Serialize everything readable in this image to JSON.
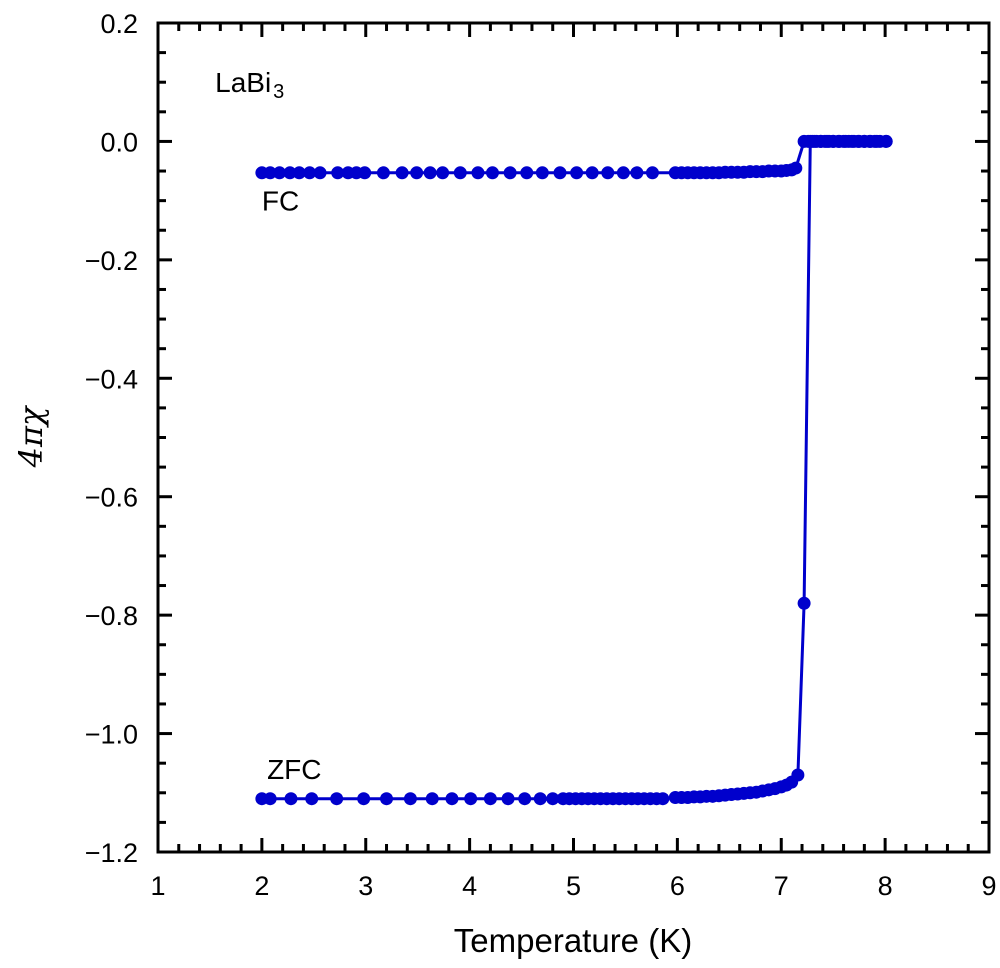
{
  "chart_data": {
    "type": "scatter",
    "title": "",
    "xlabel": "Temperature (K)",
    "ylabel": "4πχ",
    "xlim": [
      1,
      9
    ],
    "ylim": [
      -1.2,
      0.2
    ],
    "xticks": [
      1,
      2,
      3,
      4,
      5,
      6,
      7,
      8,
      9
    ],
    "yticks": [
      0.2,
      0.0,
      -0.2,
      -0.4,
      -0.6,
      -0.8,
      -1.0,
      -1.2
    ],
    "xtick_labels": [
      "1",
      "2",
      "3",
      "4",
      "5",
      "6",
      "7",
      "8",
      "9"
    ],
    "ytick_labels": [
      "0.2",
      "0.0",
      "−0.2",
      "−0.4",
      "−0.6",
      "−0.8",
      "−1.0",
      "−1.2"
    ],
    "grid": false,
    "marker_color": "#0000cc",
    "annotations": [
      {
        "text": "LaBi",
        "sub": "3",
        "x": 1.55,
        "y": 0.1
      },
      {
        "text": "FC",
        "x": 2.0,
        "y": -0.1
      },
      {
        "text": "ZFC",
        "x": 2.05,
        "y": -1.06
      }
    ],
    "series": [
      {
        "name": "FC",
        "x": [
          2.0,
          2.08,
          2.17,
          2.27,
          2.36,
          2.46,
          2.56,
          2.73,
          2.83,
          2.91,
          2.99,
          3.17,
          3.35,
          3.49,
          3.62,
          3.74,
          3.91,
          4.08,
          4.22,
          4.39,
          4.55,
          4.7,
          4.87,
          5.03,
          5.18,
          5.33,
          5.48,
          5.61,
          5.76,
          5.98,
          6.04,
          6.1,
          6.16,
          6.22,
          6.28,
          6.34,
          6.4,
          6.46,
          6.52,
          6.58,
          6.64,
          6.7,
          6.76,
          6.82,
          6.88,
          6.94,
          7.0,
          7.05,
          7.1,
          7.14,
          7.22,
          7.26,
          7.3,
          7.34,
          7.38,
          7.42,
          7.46,
          7.5,
          7.55,
          7.6,
          7.65,
          7.7,
          7.75,
          7.8,
          7.85,
          7.9,
          7.95,
          8.01
        ],
        "y": [
          -0.053,
          -0.053,
          -0.053,
          -0.053,
          -0.053,
          -0.053,
          -0.053,
          -0.053,
          -0.053,
          -0.053,
          -0.053,
          -0.053,
          -0.053,
          -0.053,
          -0.053,
          -0.053,
          -0.053,
          -0.053,
          -0.053,
          -0.053,
          -0.053,
          -0.053,
          -0.053,
          -0.053,
          -0.053,
          -0.053,
          -0.053,
          -0.053,
          -0.053,
          -0.053,
          -0.053,
          -0.053,
          -0.053,
          -0.053,
          -0.053,
          -0.053,
          -0.053,
          -0.052,
          -0.052,
          -0.052,
          -0.052,
          -0.051,
          -0.051,
          -0.051,
          -0.05,
          -0.05,
          -0.05,
          -0.049,
          -0.048,
          -0.045,
          0.0,
          0.0,
          0.0,
          0.0,
          0.0,
          0.0,
          0.0,
          0.0,
          0.0,
          0.0,
          0.0,
          0.0,
          0.0,
          0.0,
          0.0,
          0.0,
          0.0,
          0.0
        ]
      },
      {
        "name": "ZFC",
        "x": [
          2.0,
          2.08,
          2.28,
          2.48,
          2.72,
          2.98,
          3.2,
          3.43,
          3.64,
          3.83,
          4.01,
          4.2,
          4.37,
          4.53,
          4.68,
          4.8,
          4.9,
          4.96,
          5.02,
          5.08,
          5.14,
          5.2,
          5.26,
          5.32,
          5.38,
          5.44,
          5.5,
          5.56,
          5.62,
          5.68,
          5.74,
          5.8,
          5.86,
          5.98,
          6.04,
          6.1,
          6.16,
          6.22,
          6.28,
          6.34,
          6.4,
          6.46,
          6.52,
          6.58,
          6.64,
          6.7,
          6.76,
          6.82,
          6.88,
          6.94,
          7.0,
          7.05,
          7.1,
          7.16,
          7.22,
          7.28,
          7.32,
          7.38,
          7.44,
          7.5,
          7.56,
          7.62,
          7.68,
          7.74,
          7.8,
          7.86,
          7.92,
          8.01
        ],
        "y": [
          -1.11,
          -1.11,
          -1.11,
          -1.11,
          -1.11,
          -1.11,
          -1.11,
          -1.11,
          -1.11,
          -1.11,
          -1.11,
          -1.11,
          -1.11,
          -1.11,
          -1.11,
          -1.11,
          -1.11,
          -1.11,
          -1.11,
          -1.11,
          -1.11,
          -1.11,
          -1.11,
          -1.11,
          -1.11,
          -1.11,
          -1.11,
          -1.11,
          -1.11,
          -1.11,
          -1.11,
          -1.11,
          -1.11,
          -1.108,
          -1.108,
          -1.108,
          -1.107,
          -1.107,
          -1.106,
          -1.106,
          -1.105,
          -1.104,
          -1.103,
          -1.102,
          -1.101,
          -1.1,
          -1.099,
          -1.097,
          -1.095,
          -1.093,
          -1.09,
          -1.087,
          -1.082,
          -1.07,
          -0.78,
          0.0,
          0.0,
          0.0,
          0.0,
          0.0,
          0.0,
          0.0,
          0.0,
          0.0,
          0.0,
          0.0,
          0.0,
          0.0
        ]
      }
    ]
  }
}
